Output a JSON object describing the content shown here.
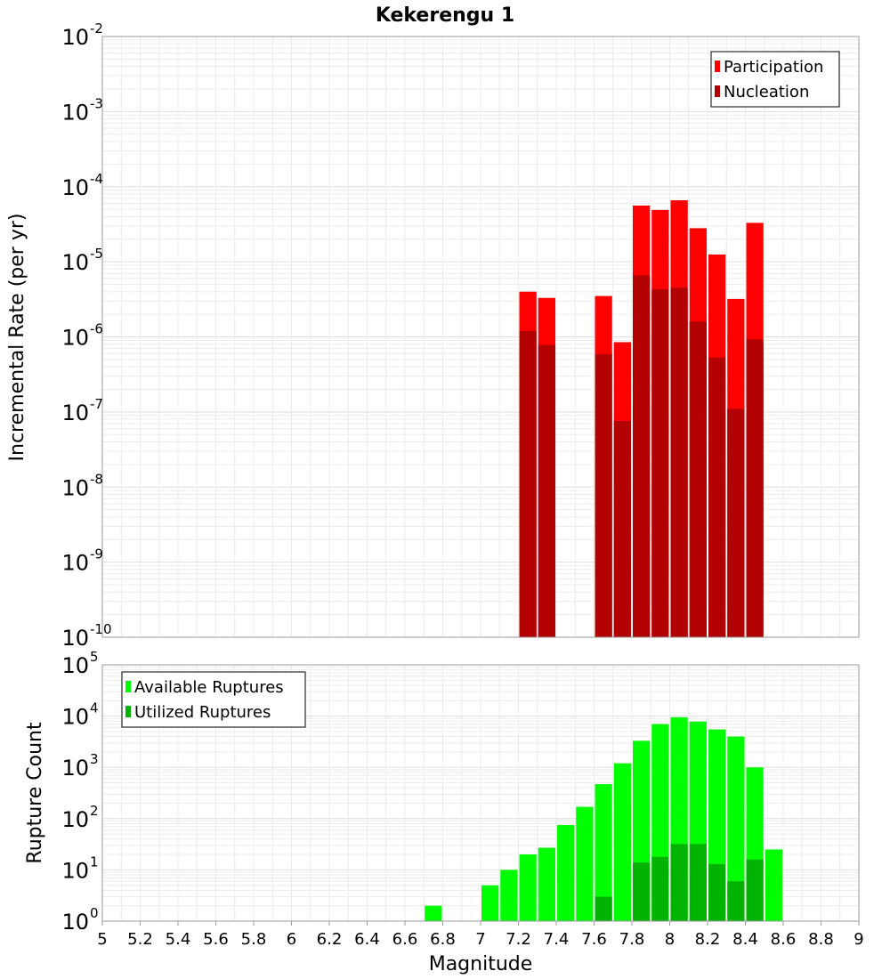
{
  "chart_data": [
    {
      "type": "bar",
      "title": "Kekerengu 1",
      "ylabel": "Incremental Rate (per yr)",
      "xlabel": "",
      "y_scale": "log",
      "ylim": [
        1e-10,
        0.01
      ],
      "y_ticks": [
        {
          "base": "10",
          "exp": "-10",
          "value": 1e-10
        },
        {
          "base": "10",
          "exp": "-9",
          "value": 1e-09
        },
        {
          "base": "10",
          "exp": "-8",
          "value": 1e-08
        },
        {
          "base": "10",
          "exp": "-7",
          "value": 1e-07
        },
        {
          "base": "10",
          "exp": "-6",
          "value": 1e-06
        },
        {
          "base": "10",
          "exp": "-5",
          "value": 1e-05
        },
        {
          "base": "10",
          "exp": "-4",
          "value": 0.0001
        },
        {
          "base": "10",
          "exp": "-3",
          "value": 0.001
        },
        {
          "base": "10",
          "exp": "-2",
          "value": 0.01
        }
      ],
      "xlim": [
        5,
        9
      ],
      "bin_width": 0.1,
      "grid": true,
      "legend_position": "top-right",
      "series": [
        {
          "name": "Participation",
          "color": "#ff0000",
          "points": [
            {
              "x": 7.25,
              "y": 4e-06
            },
            {
              "x": 7.35,
              "y": 3.3e-06
            },
            {
              "x": 7.65,
              "y": 3.5e-06
            },
            {
              "x": 7.75,
              "y": 8.5e-07
            },
            {
              "x": 7.85,
              "y": 5.6e-05
            },
            {
              "x": 7.95,
              "y": 4.9e-05
            },
            {
              "x": 8.05,
              "y": 6.6e-05
            },
            {
              "x": 8.15,
              "y": 2.8e-05
            },
            {
              "x": 8.25,
              "y": 1.25e-05
            },
            {
              "x": 8.35,
              "y": 3.2e-06
            },
            {
              "x": 8.45,
              "y": 3.3e-05
            }
          ]
        },
        {
          "name": "Nucleation",
          "color": "#b30000",
          "points": [
            {
              "x": 7.25,
              "y": 1.2e-06
            },
            {
              "x": 7.35,
              "y": 7.8e-07
            },
            {
              "x": 7.65,
              "y": 5.9e-07
            },
            {
              "x": 7.75,
              "y": 7.6e-08
            },
            {
              "x": 7.85,
              "y": 6.6e-06
            },
            {
              "x": 7.95,
              "y": 4.3e-06
            },
            {
              "x": 8.05,
              "y": 4.5e-06
            },
            {
              "x": 8.15,
              "y": 1.6e-06
            },
            {
              "x": 8.25,
              "y": 5.3e-07
            },
            {
              "x": 8.35,
              "y": 1.1e-07
            },
            {
              "x": 8.45,
              "y": 9.3e-07
            }
          ]
        }
      ]
    },
    {
      "type": "bar",
      "title": "",
      "ylabel": "Rupture Count",
      "xlabel": "Magnitude",
      "y_scale": "log",
      "ylim": [
        1,
        100000
      ],
      "y_ticks": [
        {
          "base": "10",
          "exp": "0",
          "value": 1
        },
        {
          "base": "10",
          "exp": "1",
          "value": 10
        },
        {
          "base": "10",
          "exp": "2",
          "value": 100
        },
        {
          "base": "10",
          "exp": "3",
          "value": 1000
        },
        {
          "base": "10",
          "exp": "4",
          "value": 10000
        },
        {
          "base": "10",
          "exp": "5",
          "value": 100000
        }
      ],
      "xlim": [
        5,
        9
      ],
      "x_ticks": [
        "5",
        "5.2",
        "5.4",
        "5.6",
        "5.8",
        "6",
        "6.2",
        "6.4",
        "6.6",
        "6.8",
        "7",
        "7.2",
        "7.4",
        "7.6",
        "7.8",
        "8",
        "8.2",
        "8.4",
        "8.6",
        "8.8",
        "9"
      ],
      "bin_width": 0.1,
      "grid": true,
      "legend_position": "top-left",
      "series": [
        {
          "name": "Available Ruptures",
          "color": "#00ff00",
          "points": [
            {
              "x": 6.75,
              "y": 2
            },
            {
              "x": 6.95,
              "y": 1
            },
            {
              "x": 7.05,
              "y": 5
            },
            {
              "x": 7.15,
              "y": 10
            },
            {
              "x": 7.25,
              "y": 20
            },
            {
              "x": 7.35,
              "y": 27
            },
            {
              "x": 7.45,
              "y": 75
            },
            {
              "x": 7.55,
              "y": 170
            },
            {
              "x": 7.65,
              "y": 470
            },
            {
              "x": 7.75,
              "y": 1200
            },
            {
              "x": 7.85,
              "y": 3300
            },
            {
              "x": 7.95,
              "y": 7000
            },
            {
              "x": 8.05,
              "y": 9500
            },
            {
              "x": 8.15,
              "y": 7800
            },
            {
              "x": 8.25,
              "y": 5500
            },
            {
              "x": 8.35,
              "y": 4000
            },
            {
              "x": 8.45,
              "y": 1000
            },
            {
              "x": 8.55,
              "y": 25
            }
          ]
        },
        {
          "name": "Utilized Ruptures",
          "color": "#00b300",
          "points": [
            {
              "x": 7.25,
              "y": 1
            },
            {
              "x": 7.35,
              "y": 1
            },
            {
              "x": 7.65,
              "y": 3
            },
            {
              "x": 7.75,
              "y": 1
            },
            {
              "x": 7.85,
              "y": 14
            },
            {
              "x": 7.95,
              "y": 18
            },
            {
              "x": 8.05,
              "y": 32
            },
            {
              "x": 8.15,
              "y": 32
            },
            {
              "x": 8.25,
              "y": 13
            },
            {
              "x": 8.35,
              "y": 6
            },
            {
              "x": 8.45,
              "y": 16
            }
          ]
        }
      ]
    }
  ]
}
